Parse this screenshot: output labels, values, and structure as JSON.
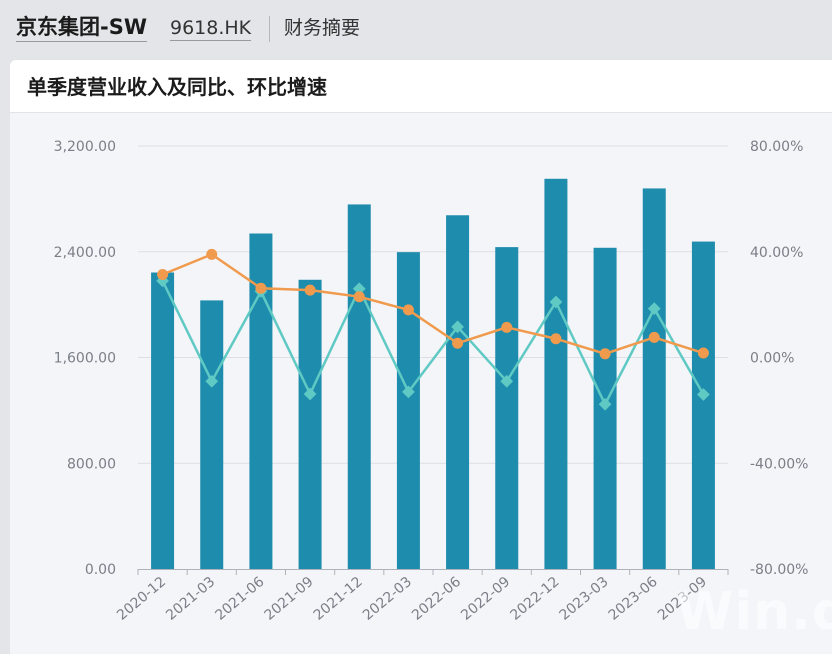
{
  "header": {
    "company": "京东集团-SW",
    "code": "9618.HK",
    "section": "财务摘要"
  },
  "card": {
    "title": "单季度营业收入及同比、环比增速"
  },
  "watermark": "Win.d",
  "chart_data": {
    "type": "bar+line",
    "title": "单季度营业收入及同比、环比增速",
    "categories": [
      "2020-12",
      "2021-03",
      "2021-06",
      "2021-09",
      "2021-12",
      "2022-03",
      "2022-06",
      "2022-09",
      "2022-12",
      "2023-03",
      "2023-06",
      "2023-09"
    ],
    "y_left": {
      "ylim": [
        0,
        3200
      ],
      "ticks": [
        "0.00",
        "800.00",
        "1,600.00",
        "2,400.00",
        "3,200.00"
      ]
    },
    "y_right": {
      "ylim": [
        -80,
        80
      ],
      "ticks": [
        "-80.00%",
        "-40.00%",
        "0.00%",
        "40.00%",
        "80.00%"
      ]
    },
    "series": [
      {
        "type": "bar",
        "axis": "left",
        "color": "#1e8cad",
        "values": [
          2243,
          2032,
          2538,
          2188,
          2758,
          2397,
          2676,
          2435,
          2952,
          2430,
          2879,
          2477
        ]
      },
      {
        "type": "line",
        "axis": "right",
        "color": "#f09a4e",
        "values": [
          31.4,
          39.0,
          26.2,
          25.5,
          23.0,
          18.0,
          5.4,
          11.4,
          7.1,
          1.4,
          7.6,
          1.7
        ]
      },
      {
        "type": "line",
        "axis": "right",
        "color": "#5fc9c4",
        "values": [
          29.0,
          -9.0,
          25.0,
          -13.8,
          26.0,
          -13.0,
          11.6,
          -9.0,
          21.0,
          -17.7,
          18.5,
          -14.0
        ]
      }
    ],
    "grid": true,
    "legend": "none"
  }
}
